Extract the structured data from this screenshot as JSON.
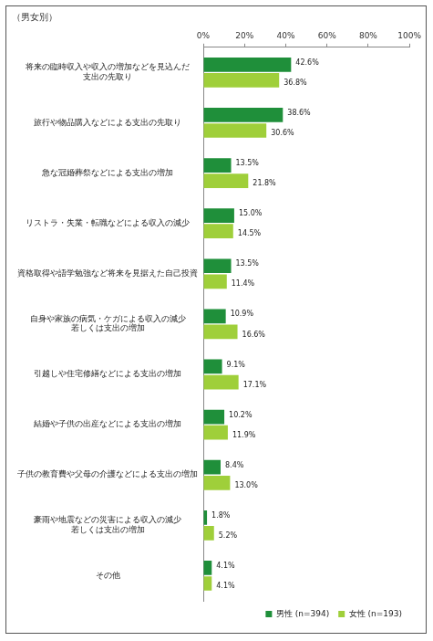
{
  "chart_data": {
    "type": "bar",
    "orientation": "horizontal",
    "subtitle": "（男女別）",
    "categories": [
      [
        "将来の臨時収入や収入の増加などを見込んだ",
        "支出の先取り"
      ],
      [
        "旅行や物品購入などによる支出の先取り"
      ],
      [
        "急な冠婚葬祭などによる支出の増加"
      ],
      [
        "リストラ・失業・転職などによる収入の減少"
      ],
      [
        "資格取得や語学勉強など将来を見据えた自己投資"
      ],
      [
        "自身や家族の病気・ケガによる収入の減少",
        "若しくは支出の増加"
      ],
      [
        "引越しや住宅修繕などによる支出の増加"
      ],
      [
        "結婚や子供の出産などによる支出の増加"
      ],
      [
        "子供の教育費や父母の介護などによる支出の増加"
      ],
      [
        "豪雨や地震などの災害による収入の減少",
        "若しくは支出の増加"
      ],
      [
        "その他"
      ]
    ],
    "series": [
      {
        "name": "男性",
        "sample": "(n=394)",
        "color": "#1f8f3a",
        "values": [
          42.6,
          38.6,
          13.5,
          15.0,
          13.5,
          10.9,
          9.1,
          10.2,
          8.4,
          1.8,
          4.1
        ],
        "value_labels": [
          "42.6%",
          "38.6%",
          "13.5%",
          "15.0%",
          "13.5%",
          "10.9%",
          "9.1%",
          "10.2%",
          "8.4%",
          "1.8%",
          "4.1%"
        ]
      },
      {
        "name": "女性",
        "sample": "(n=193)",
        "color": "#9fcf3a",
        "values": [
          36.8,
          30.6,
          21.8,
          14.5,
          11.4,
          16.6,
          17.1,
          11.9,
          13.0,
          5.2,
          4.1
        ],
        "value_labels": [
          "36.8%",
          "30.6%",
          "21.8%",
          "14.5%",
          "11.4%",
          "16.6%",
          "17.1%",
          "11.9%",
          "13.0%",
          "5.2%",
          "4.1%"
        ]
      }
    ],
    "xlim": [
      0,
      100
    ],
    "xticks": [
      {
        "value": 0,
        "label": "0%"
      },
      {
        "value": 20,
        "label": "20%"
      },
      {
        "value": 40,
        "label": "40%"
      },
      {
        "value": 60,
        "label": "60%"
      },
      {
        "value": 80,
        "label": "80%"
      },
      {
        "value": 100,
        "label": "100%"
      }
    ],
    "grid": false,
    "data_labels": true,
    "legend": "bottom"
  }
}
